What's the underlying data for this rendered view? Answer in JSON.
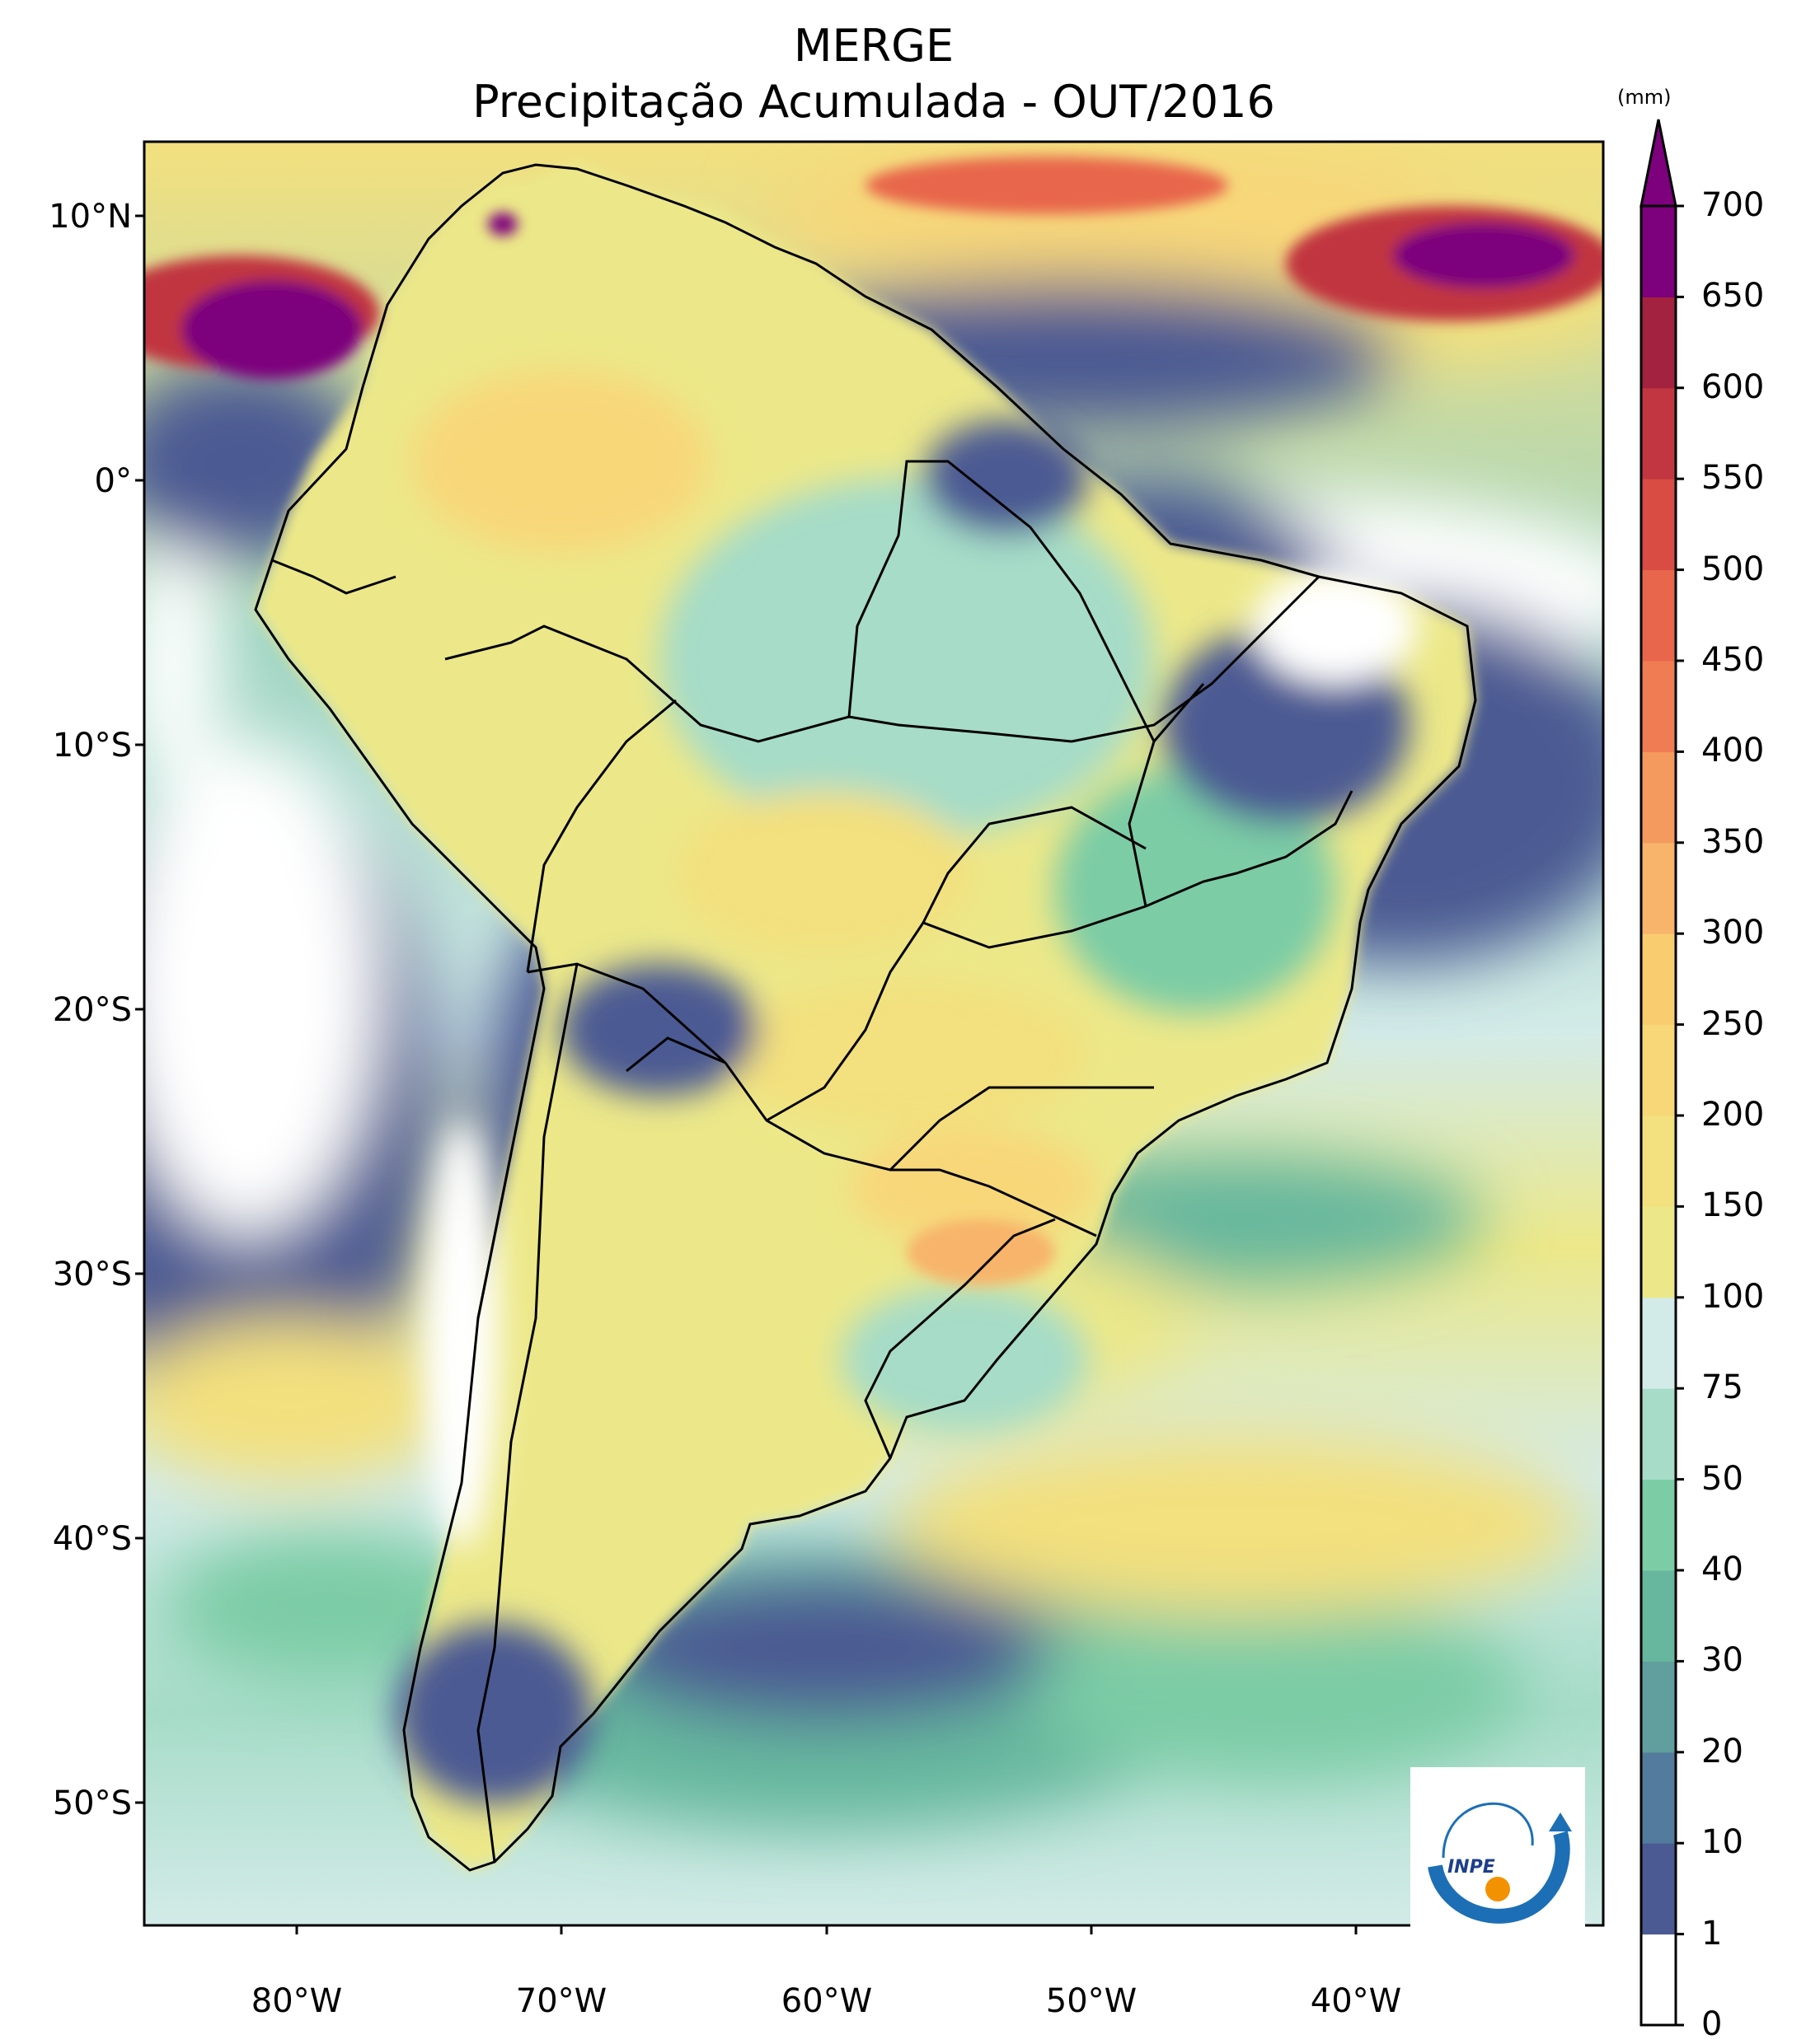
{
  "title": {
    "line1": "MERGE",
    "line2": "Precipitação Acumulada - OUT/2016"
  },
  "map": {
    "region": "South America",
    "colors": {
      "land_border": "#000000",
      "dry": "#ffffff",
      "low": "#4b5a93",
      "moderate": "#9fd4c2",
      "wet": "#f0df78",
      "very_wet": "#e35d4a",
      "extreme": "#7d007d"
    }
  },
  "latitude_ticks": [
    "10°N",
    "0°",
    "10°S",
    "20°S",
    "30°S",
    "40°S",
    "50°S"
  ],
  "longitude_ticks": [
    "80°W",
    "70°W",
    "60°W",
    "50°W",
    "40°W"
  ],
  "colorbar": {
    "unit": "(mm)",
    "labels": [
      "0",
      "1",
      "10",
      "20",
      "30",
      "40",
      "50",
      "75",
      "100",
      "150",
      "200",
      "250",
      "300",
      "350",
      "400",
      "450",
      "500",
      "550",
      "600",
      "650",
      "700"
    ],
    "colors": [
      "#ffffff",
      "#4b5a93",
      "#537b9d",
      "#619f9e",
      "#66b79e",
      "#7ccca6",
      "#a6dcc8",
      "#d3ebe8",
      "#ece889",
      "#f3e07e",
      "#f8d779",
      "#f9cc70",
      "#f7b46a",
      "#f59a5f",
      "#f07c54",
      "#e8664b",
      "#d84c44",
      "#c13640",
      "#a3223f",
      "#7d007d"
    ]
  },
  "logo": {
    "text": "INPE"
  }
}
